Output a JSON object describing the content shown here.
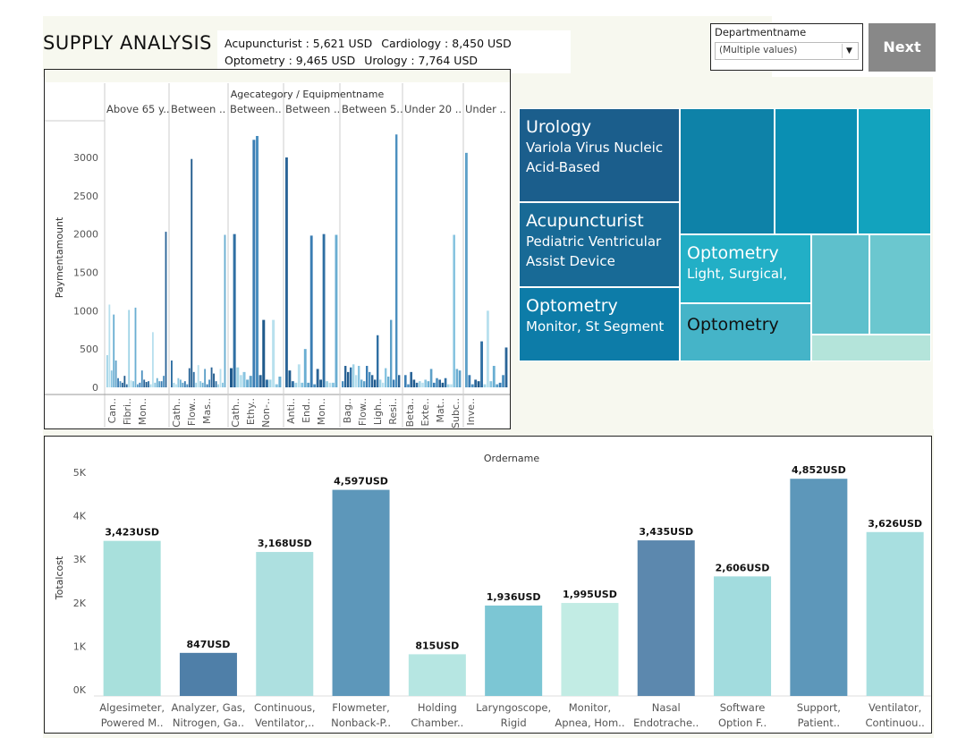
{
  "title": "SUPPLY ANALYSIS",
  "summary": [
    {
      "text": "Acupuncturist : 5,621 USD"
    },
    {
      "text": "Cardiology : 8,450 USD"
    },
    {
      "text": "Optometry : 9,465 USD"
    },
    {
      "text": "Urology : 7,764 USD"
    }
  ],
  "filter": {
    "label": "Departmentname",
    "value": "(Multiple values)"
  },
  "next_label": "Next",
  "treemap": [
    {
      "title": "Urology",
      "sub": [
        "Variola Virus Nucleic",
        "Acid-Based"
      ],
      "color": "#1b5e8c",
      "dark": false
    },
    {
      "title": "Acupuncturist",
      "sub": [
        "Pediatric Ventricular",
        "Assist Device"
      ],
      "color": "#186a96",
      "dark": false
    },
    {
      "title": "Optometry",
      "sub": [
        "Monitor, St Segment"
      ],
      "color": "#0d7ca8",
      "dark": false
    },
    {
      "title": "",
      "sub": [],
      "color": "#0e82a8",
      "dark": false
    },
    {
      "title": "",
      "sub": [],
      "color": "#0a8fb3",
      "dark": false
    },
    {
      "title": "",
      "sub": [],
      "color": "#12a3be",
      "dark": false
    },
    {
      "title": "Optometry",
      "sub": [
        "Light, Surgical,"
      ],
      "color": "#22afc6",
      "dark": false
    },
    {
      "title": "",
      "sub": [],
      "color": "#5ec0cc",
      "dark": false
    },
    {
      "title": "",
      "sub": [],
      "color": "#6bc7cf",
      "dark": false
    },
    {
      "title": "Optometry",
      "sub": [],
      "color": "#45b4c8",
      "dark": true
    },
    {
      "title": "",
      "sub": [],
      "color": "#b4e4da",
      "dark": false
    }
  ],
  "chart_data": [
    {
      "type": "bar",
      "title": "Agecategory / Equipmentname",
      "ylabel": "Paymentamount",
      "ylim": [
        0,
        3400
      ],
      "yticks": [
        0,
        500,
        1000,
        1500,
        2000,
        2500,
        3000
      ],
      "panes": [
        {
          "label": "Above 65 y..",
          "cats": [
            "Can..",
            "Fibri..",
            "Mon.."
          ],
          "values": [
            420,
            1080,
            220,
            950,
            350,
            120,
            80,
            60,
            150,
            40,
            1010,
            90,
            80,
            1040,
            40,
            60,
            220,
            100,
            70,
            80,
            40,
            720,
            60,
            120,
            80,
            80,
            150,
            2030
          ]
        },
        {
          "label": "Between ..",
          "cats": [
            "Cath..",
            "Flow..",
            "Mas.."
          ],
          "values": [
            350,
            60,
            40,
            120,
            100,
            60,
            80,
            40,
            250,
            2980,
            200,
            60,
            290,
            80,
            60,
            240,
            40,
            100,
            260,
            180,
            80,
            40,
            240,
            60,
            1990
          ]
        },
        {
          "label": "Between..",
          "cats": [
            "Cath..",
            "Ethy..",
            "Non-.."
          ],
          "values": [
            250,
            2000,
            260,
            160,
            200,
            100,
            150,
            3230,
            3280,
            160,
            880,
            100,
            100,
            880,
            40,
            140
          ]
        },
        {
          "label": "Between ..",
          "cats": [
            "Anti..",
            "End..",
            "Mon.."
          ],
          "values": [
            3000,
            220,
            80,
            60,
            300,
            60,
            500,
            60,
            1980,
            40,
            240,
            100,
            2000,
            80,
            60,
            60,
            1990
          ]
        },
        {
          "label": "Between 5..",
          "cats": [
            "Bag..",
            "Flow..",
            "Ligh..",
            "Resi.."
          ],
          "values": [
            80,
            280,
            200,
            260,
            300,
            160,
            280,
            100,
            80,
            280,
            200,
            160,
            100,
            680,
            100,
            60,
            250,
            140,
            880,
            100,
            3300,
            160
          ]
        },
        {
          "label": "Under 20 ..",
          "cats": [
            "Beta..",
            "Exte..",
            "Mat..",
            "Subc.."
          ],
          "values": [
            160,
            40,
            200,
            100,
            60,
            80,
            60,
            100,
            80,
            240,
            60,
            120,
            100,
            60,
            120,
            40,
            40,
            1990,
            240,
            220
          ]
        },
        {
          "label": "Under ..",
          "cats": [
            "Inve.."
          ],
          "values": [
            3060,
            160,
            40,
            100,
            80,
            600,
            40,
            1000,
            80,
            280,
            40,
            60,
            160,
            520
          ]
        }
      ]
    },
    {
      "type": "bar",
      "title": "Ordername",
      "ylabel": "Totalcost",
      "ylim": [
        0,
        5000
      ],
      "yticks": [
        "0K",
        "1K",
        "2K",
        "3K",
        "4K",
        "5K"
      ],
      "categories": [
        [
          "Algesimeter,",
          "Powered M.."
        ],
        [
          "Analyzer, Gas,",
          "Nitrogen, Ga.."
        ],
        [
          "Continuous,",
          "Ventilator,.."
        ],
        [
          "Flowmeter,",
          "Nonback-P.."
        ],
        [
          "Holding",
          "Chamber.."
        ],
        [
          "Laryngoscope,",
          "Rigid"
        ],
        [
          "Monitor,",
          "Apnea, Hom.."
        ],
        [
          "Nasal",
          "Endotrache.."
        ],
        [
          "Software",
          "Option F.."
        ],
        [
          "Support,",
          "Patient.."
        ],
        [
          "Ventilator,",
          "Continuou.."
        ]
      ],
      "values": [
        3423,
        847,
        3168,
        4597,
        815,
        1936,
        1995,
        3435,
        2606,
        4852,
        3626
      ],
      "labels": [
        "3,423USD",
        "847USD",
        "3,168USD",
        "4,597USD",
        "815USD",
        "1,936USD",
        "1,995USD",
        "3,435USD",
        "2,606USD",
        "4,852USD",
        "3,626USD"
      ],
      "colors": [
        "#a8e0dc",
        "#4f7fa8",
        "#ade0e0",
        "#5d97ba",
        "#b6e6e2",
        "#7cc6d4",
        "#c2ece4",
        "#5c88ae",
        "#a2dcde",
        "#5d97ba",
        "#a8dfe0"
      ]
    }
  ]
}
